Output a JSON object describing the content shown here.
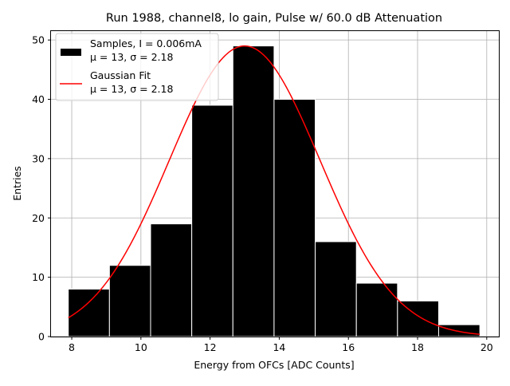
{
  "chart_data": {
    "type": "bar",
    "title": "Run 1988, channel8, lo gain, Pulse w/ 60.0 dB Attenuation",
    "xlabel": "Energy from OFCs [ADC Counts]",
    "ylabel": "Entries",
    "xlim": [
      7.4,
      20.35
    ],
    "ylim": [
      0,
      51.5
    ],
    "xticks": [
      8,
      10,
      12,
      14,
      16,
      18,
      20
    ],
    "yticks": [
      0,
      10,
      20,
      30,
      40,
      50
    ],
    "grid": true,
    "bin_edges": [
      7.9,
      9.09,
      10.28,
      11.47,
      12.66,
      13.85,
      15.04,
      16.23,
      17.42,
      18.61,
      19.8
    ],
    "counts": [
      8,
      12,
      19,
      39,
      49,
      40,
      16,
      9,
      6,
      2
    ],
    "fit": {
      "mu": 13,
      "sigma": 2.18,
      "amplitude": 49,
      "x_range": [
        7.9,
        19.8
      ]
    },
    "legend": {
      "placement": "top-left",
      "entries": [
        {
          "label": "Samples, I = 0.006mA",
          "sublabel": "μ = 13, σ = 2.18",
          "color": "#000000",
          "kind": "patch"
        },
        {
          "label": "Gaussian Fit",
          "sublabel": "μ = 13, σ = 2.18",
          "color": "#ff0000",
          "kind": "line"
        }
      ]
    }
  }
}
